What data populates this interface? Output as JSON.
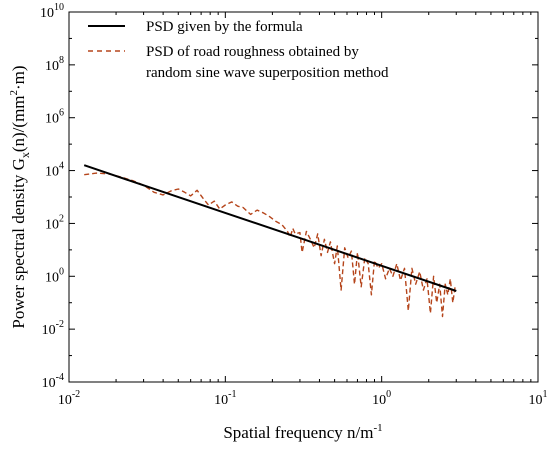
{
  "chart_data": {
    "type": "line",
    "xscale": "log",
    "yscale": "log",
    "xlim": [
      0.01,
      10
    ],
    "ylim": [
      0.0001,
      10000000000
    ],
    "grid": false,
    "legend_position": "top-left",
    "xlabel": {
      "main": "Spatial frequency n/m",
      "sup": "-1"
    },
    "ylabel": {
      "p1": "Power spectral density G",
      "sub": "x",
      "p2": "(n)/(mm",
      "sup": "2",
      "p3": "·m)"
    },
    "x_tick_labels": [
      {
        "base": "10",
        "exp": "-2",
        "value": 0.01
      },
      {
        "base": "10",
        "exp": "-1",
        "value": 0.1
      },
      {
        "base": "10",
        "exp": "0",
        "value": 1
      },
      {
        "base": "10",
        "exp": "1",
        "value": 10
      }
    ],
    "y_tick_labels": [
      {
        "base": "10",
        "exp": "-4",
        "value": 0.0001
      },
      {
        "base": "10",
        "exp": "-2",
        "value": 0.01
      },
      {
        "base": "10",
        "exp": "0",
        "value": 1
      },
      {
        "base": "10",
        "exp": "2",
        "value": 100
      },
      {
        "base": "10",
        "exp": "4",
        "value": 10000
      },
      {
        "base": "10",
        "exp": "6",
        "value": 1000000
      },
      {
        "base": "10",
        "exp": "8",
        "value": 100000000
      },
      {
        "base": "10",
        "exp": "10",
        "value": 10000000000
      }
    ],
    "legend": [
      "PSD given by the formula",
      "PSD of road roughness obtained by",
      "random sine wave superposition method"
    ],
    "series": [
      {
        "name": "PSD given by the formula",
        "color": "#000000",
        "style": "solid",
        "x": [
          0.0125,
          0.03,
          0.1,
          0.3,
          1.0,
          3.0
        ],
        "y": [
          16000,
          2778,
          250,
          27.8,
          2.5,
          0.278
        ]
      },
      {
        "name": "PSD of road roughness obtained by random sine wave superposition method",
        "color": "#b5451b",
        "style": "dashed",
        "x": [
          0.0125,
          0.015,
          0.018,
          0.022,
          0.026,
          0.03,
          0.035,
          0.04,
          0.045,
          0.05,
          0.055,
          0.06,
          0.066,
          0.072,
          0.078,
          0.085,
          0.092,
          0.1,
          0.11,
          0.12,
          0.13,
          0.145,
          0.16,
          0.175,
          0.19,
          0.21,
          0.23,
          0.25,
          0.26,
          0.27,
          0.28,
          0.3,
          0.31,
          0.33,
          0.35,
          0.37,
          0.39,
          0.41,
          0.43,
          0.45,
          0.47,
          0.5,
          0.52,
          0.55,
          0.58,
          0.61,
          0.64,
          0.67,
          0.7,
          0.74,
          0.78,
          0.82,
          0.86,
          0.9,
          0.95,
          1.0,
          1.06,
          1.12,
          1.18,
          1.25,
          1.32,
          1.4,
          1.48,
          1.56,
          1.65,
          1.75,
          1.85,
          1.95,
          2.05,
          2.15,
          2.25,
          2.35,
          2.45,
          2.55,
          2.65,
          2.75,
          2.85,
          2.95
        ],
        "y": [
          7000,
          8000,
          7500,
          5500,
          4000,
          2800,
          1500,
          1200,
          1700,
          2000,
          1500,
          1100,
          1800,
          900,
          500,
          700,
          350,
          500,
          650,
          450,
          400,
          220,
          320,
          250,
          190,
          120,
          90,
          50,
          30,
          65,
          40,
          45,
          8,
          50,
          25,
          12,
          40,
          6,
          25,
          8,
          20,
          3,
          14,
          0.3,
          12,
          5,
          9,
          0.5,
          8,
          0.4,
          5,
          3,
          0.2,
          4,
          2,
          3,
          0.8,
          2,
          1,
          3,
          0.7,
          2,
          0.05,
          2,
          0.5,
          1.5,
          0.3,
          0.8,
          0.04,
          1,
          0.1,
          0.5,
          0.03,
          0.5,
          0.2,
          0.8,
          0.1,
          0.4
        ]
      }
    ]
  }
}
